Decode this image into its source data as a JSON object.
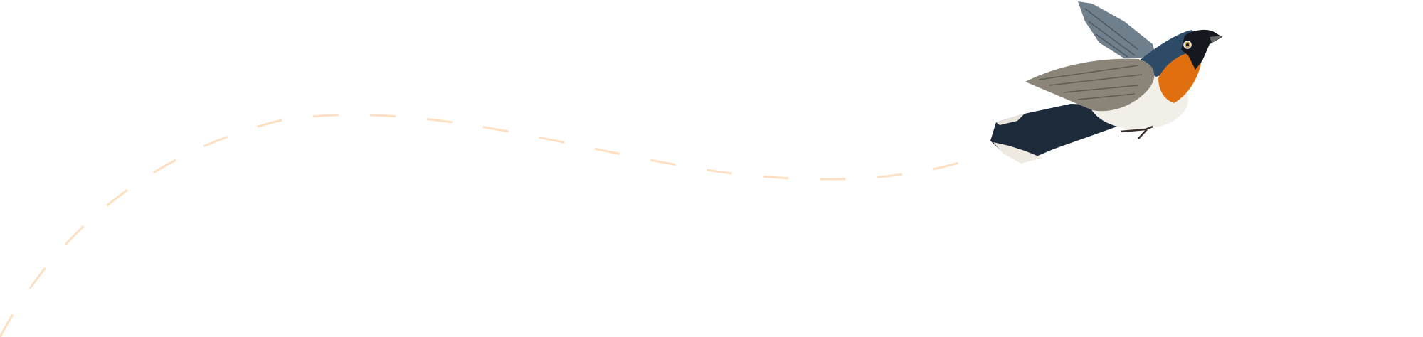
{
  "colors": {
    "background": "#ffffff",
    "flight_path": "#fddfc2",
    "bird_throat": "#e0700f",
    "bird_head": "#15181f",
    "bird_back": "#2d4a66",
    "bird_wing": "#7b7f80",
    "bird_belly": "#f2efe8"
  },
  "icons": {
    "bird": "bird-illustration",
    "path": "dashed-flight-path"
  }
}
